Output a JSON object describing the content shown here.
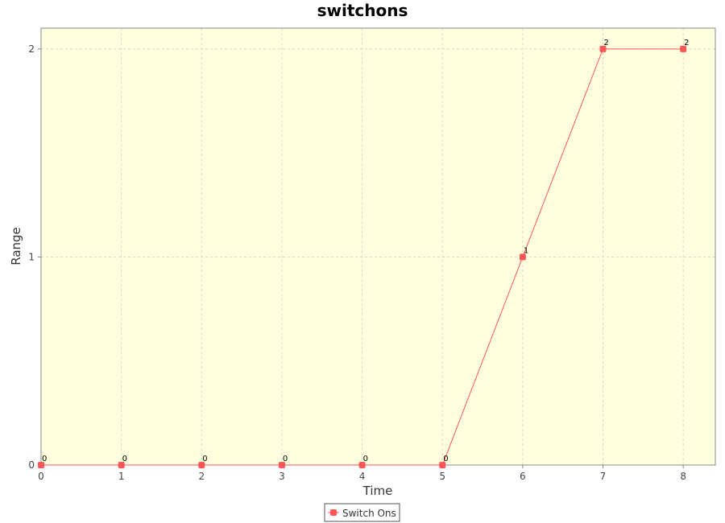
{
  "colors": {
    "plot_background": "#ffffdf",
    "series": "#ff5555",
    "grid": "#d8d8c4",
    "axis": "#888888"
  },
  "chart_data": {
    "type": "line",
    "title": "switchons",
    "xlabel": "Time",
    "ylabel": "Range",
    "xlim": [
      0,
      8.4
    ],
    "ylim": [
      0,
      2.1
    ],
    "x_ticks": [
      0,
      1,
      2,
      3,
      4,
      5,
      6,
      7,
      8
    ],
    "y_ticks": [
      0,
      1,
      2
    ],
    "grid": true,
    "legend_position": "bottom",
    "x": [
      0,
      1,
      2,
      3,
      4,
      5,
      6,
      7,
      8
    ],
    "series": [
      {
        "name": "Switch Ons",
        "values": [
          0,
          0,
          0,
          0,
          0,
          0,
          1,
          2,
          2
        ],
        "data_labels": [
          "0",
          "0",
          "0",
          "0",
          "0",
          "0",
          "1",
          "2",
          "2"
        ]
      }
    ]
  }
}
